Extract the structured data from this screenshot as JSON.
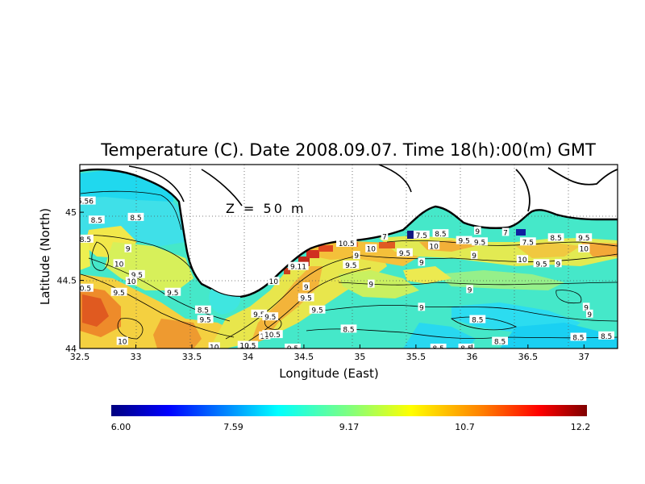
{
  "title": "Temperature (C). Date 2008.09.07. Time 18(h):00(m) GMT",
  "depth_label": "Z = 50 m",
  "x_axis": {
    "label": "Longitude (East)",
    "range": [
      32.5,
      37.3
    ],
    "ticks": [
      "32.5",
      "33",
      "33.5",
      "34",
      "34.5",
      "35",
      "35.5",
      "36",
      "36.5",
      "37"
    ],
    "tick_values": [
      32.5,
      33,
      33.5,
      34,
      34.5,
      35,
      35.5,
      36,
      36.5,
      37
    ]
  },
  "y_axis": {
    "label": "Latitude (North)",
    "range": [
      44.0,
      45.35
    ],
    "ticks": [
      "44",
      "44.5",
      "45"
    ],
    "tick_values": [
      44.0,
      44.5,
      45.0
    ]
  },
  "grid": "dotted",
  "colorbar": {
    "min": 6.0,
    "max": 12.2,
    "tick_labels": [
      "6.00",
      "7.59",
      "9.17",
      "10.7",
      "12.2"
    ],
    "colors": [
      "#00007f",
      "#0000ff",
      "#007fff",
      "#00ffff",
      "#7fff7f",
      "#ffff00",
      "#ff7f00",
      "#ff0000",
      "#7f0000"
    ]
  },
  "contour_labels": [
    {
      "text": "5.56",
      "lon": 32.55,
      "lat": 45.08
    },
    {
      "text": "8.5",
      "lon": 32.65,
      "lat": 44.94
    },
    {
      "text": "8.5",
      "lon": 33.0,
      "lat": 44.96
    },
    {
      "text": "8.5",
      "lon": 32.55,
      "lat": 44.8
    },
    {
      "text": "9",
      "lon": 32.93,
      "lat": 44.73
    },
    {
      "text": "10",
      "lon": 32.85,
      "lat": 44.62
    },
    {
      "text": "9.5",
      "lon": 33.01,
      "lat": 44.54
    },
    {
      "text": "10",
      "lon": 32.96,
      "lat": 44.49
    },
    {
      "text": "9.5",
      "lon": 32.85,
      "lat": 44.41
    },
    {
      "text": "0.5",
      "lon": 32.55,
      "lat": 44.44
    },
    {
      "text": "9.5",
      "lon": 33.33,
      "lat": 44.41
    },
    {
      "text": "8.5",
      "lon": 33.6,
      "lat": 44.28
    },
    {
      "text": "9.5",
      "lon": 33.62,
      "lat": 44.21
    },
    {
      "text": "10",
      "lon": 32.88,
      "lat": 44.05
    },
    {
      "text": "10",
      "lon": 33.7,
      "lat": 44.01
    },
    {
      "text": "10.5",
      "lon": 34.0,
      "lat": 44.02
    },
    {
      "text": "10",
      "lon": 34.15,
      "lat": 44.09
    },
    {
      "text": "10.5",
      "lon": 34.22,
      "lat": 44.1
    },
    {
      "text": "9.5",
      "lon": 34.1,
      "lat": 44.25
    },
    {
      "text": "9.5",
      "lon": 34.2,
      "lat": 44.23
    },
    {
      "text": "10",
      "lon": 34.23,
      "lat": 44.49
    },
    {
      "text": "9.11",
      "lon": 34.45,
      "lat": 44.6
    },
    {
      "text": "9",
      "lon": 34.52,
      "lat": 44.45
    },
    {
      "text": "9.5",
      "lon": 34.52,
      "lat": 44.37
    },
    {
      "text": "9.5",
      "lon": 34.62,
      "lat": 44.28
    },
    {
      "text": "8.5",
      "lon": 34.9,
      "lat": 44.14
    },
    {
      "text": "10.5",
      "lon": 34.88,
      "lat": 44.77
    },
    {
      "text": "9",
      "lon": 34.97,
      "lat": 44.68
    },
    {
      "text": "9.5",
      "lon": 34.92,
      "lat": 44.61
    },
    {
      "text": "9",
      "lon": 35.1,
      "lat": 44.47
    },
    {
      "text": "10",
      "lon": 35.1,
      "lat": 44.73
    },
    {
      "text": "7",
      "lon": 35.22,
      "lat": 44.82
    },
    {
      "text": "9.5",
      "lon": 35.4,
      "lat": 44.7
    },
    {
      "text": "7.5",
      "lon": 35.55,
      "lat": 44.83
    },
    {
      "text": "8.5",
      "lon": 35.72,
      "lat": 44.84
    },
    {
      "text": "10",
      "lon": 35.66,
      "lat": 44.75
    },
    {
      "text": "9",
      "lon": 35.55,
      "lat": 44.63
    },
    {
      "text": "9",
      "lon": 35.55,
      "lat": 44.3
    },
    {
      "text": "9",
      "lon": 36.05,
      "lat": 44.86
    },
    {
      "text": "9.5",
      "lon": 35.93,
      "lat": 44.79
    },
    {
      "text": "9.5",
      "lon": 36.07,
      "lat": 44.78
    },
    {
      "text": "9",
      "lon": 36.02,
      "lat": 44.68
    },
    {
      "text": "9",
      "lon": 35.98,
      "lat": 44.43
    },
    {
      "text": "8.5",
      "lon": 36.05,
      "lat": 44.21
    },
    {
      "text": "7",
      "lon": 36.3,
      "lat": 44.85
    },
    {
      "text": "7.5",
      "lon": 36.5,
      "lat": 44.78
    },
    {
      "text": "8.5",
      "lon": 36.75,
      "lat": 44.81
    },
    {
      "text": "10",
      "lon": 36.45,
      "lat": 44.65
    },
    {
      "text": "9.5",
      "lon": 36.62,
      "lat": 44.62
    },
    {
      "text": "9",
      "lon": 36.77,
      "lat": 44.62
    },
    {
      "text": "9.5",
      "lon": 37.0,
      "lat": 44.81
    },
    {
      "text": "10",
      "lon": 37.0,
      "lat": 44.73
    },
    {
      "text": "9",
      "lon": 37.02,
      "lat": 44.3
    },
    {
      "text": "9",
      "lon": 37.05,
      "lat": 44.25
    },
    {
      "text": "8.5",
      "lon": 37.2,
      "lat": 44.09
    },
    {
      "text": "8.5",
      "lon": 36.95,
      "lat": 44.08
    },
    {
      "text": "8.5",
      "lon": 36.25,
      "lat": 44.05
    },
    {
      "text": "8.5",
      "lon": 35.7,
      "lat": 44.0
    },
    {
      "text": "8.5",
      "lon": 35.95,
      "lat": 44.0
    },
    {
      "text": "9.5",
      "lon": 34.4,
      "lat": 44.0
    }
  ]
}
